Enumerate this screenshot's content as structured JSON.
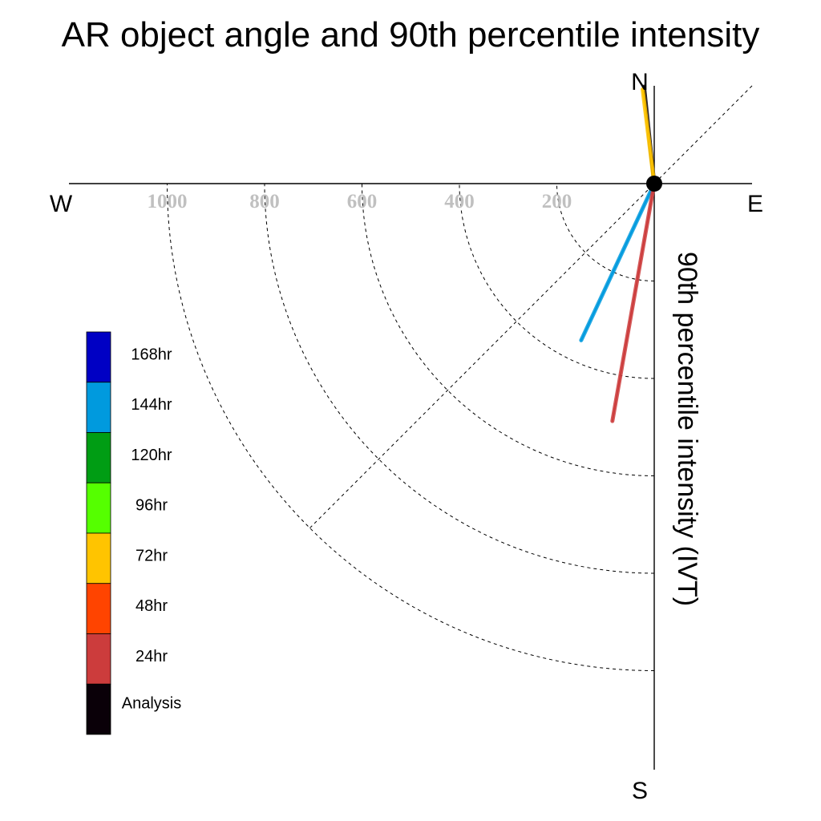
{
  "chart_data": {
    "type": "polar-vector",
    "title": "AR object angle and 90th percentile intensity",
    "ylabel": "90th percentile intensity (IVT)",
    "compass": {
      "north": "N",
      "south": "S",
      "east": "E",
      "west": "W"
    },
    "radial_ticks": [
      {
        "value": 200,
        "label": "200"
      },
      {
        "value": 400,
        "label": "400"
      },
      {
        "value": 600,
        "label": "600"
      },
      {
        "value": 800,
        "label": "800"
      },
      {
        "value": 1000,
        "label": "1000"
      }
    ],
    "radial_max": 1200,
    "series": [
      {
        "name": "Analysis",
        "angle_deg": -6,
        "intensity": 200,
        "color": "#0a0008"
      },
      {
        "name": "72hr",
        "angle_deg": -7,
        "intensity": 195,
        "color": "#ffc400"
      },
      {
        "name": "144hr",
        "angle_deg": 205,
        "intensity": 355,
        "color": "#009ade"
      },
      {
        "name": "24hr",
        "angle_deg": 190,
        "intensity": 495,
        "color": "#cc3c3c"
      }
    ],
    "legend": [
      {
        "label": "168hr",
        "color": "#0000c4"
      },
      {
        "label": "144hr",
        "color": "#009ade"
      },
      {
        "label": "120hr",
        "color": "#009d14"
      },
      {
        "label": "96hr",
        "color": "#55ff00"
      },
      {
        "label": "72hr",
        "color": "#ffc400"
      },
      {
        "label": "48hr",
        "color": "#ff4400"
      },
      {
        "label": "24hr",
        "color": "#cc3c3c"
      },
      {
        "label": "Analysis",
        "color": "#0a0008"
      }
    ]
  }
}
